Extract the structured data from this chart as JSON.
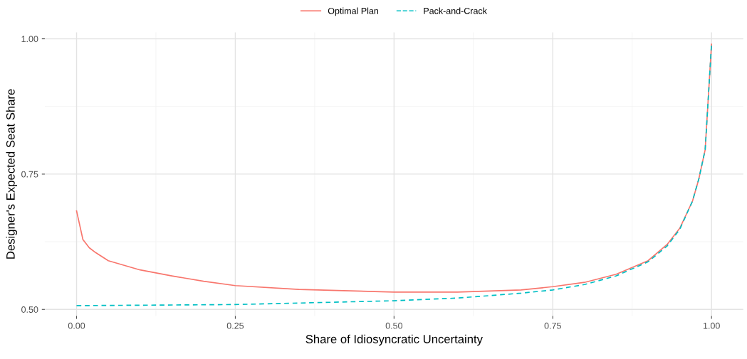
{
  "chart_data": {
    "type": "line",
    "xlabel": "Share of Idiosyncratic Uncertainty",
    "ylabel": "Designer's Expected Seat Share",
    "xlim": [
      -0.05,
      1.05
    ],
    "ylim": [
      0.488,
      1.012
    ],
    "xticks": [
      {
        "value": 0,
        "label": "0.00"
      },
      {
        "value": 0.25,
        "label": "0.25"
      },
      {
        "value": 0.5,
        "label": "0.50"
      },
      {
        "value": 0.75,
        "label": "0.75"
      },
      {
        "value": 1,
        "label": "1.00"
      }
    ],
    "yticks": [
      {
        "value": 0.5,
        "label": "0.50"
      },
      {
        "value": 0.75,
        "label": "0.75"
      },
      {
        "value": 1,
        "label": "1.00"
      }
    ],
    "grid": true,
    "legend": "top",
    "series": [
      {
        "name": "Optimal Plan",
        "color": "#f8766d",
        "line_style": "solid",
        "x": [
          0,
          0.01,
          0.02,
          0.03,
          0.05,
          0.1,
          0.15,
          0.2,
          0.25,
          0.35,
          0.5,
          0.6,
          0.7,
          0.75,
          0.8,
          0.85,
          0.9,
          0.93,
          0.95,
          0.97,
          0.98,
          0.99,
          1.0
        ],
        "values": [
          0.682,
          0.629,
          0.614,
          0.605,
          0.59,
          0.573,
          0.562,
          0.552,
          0.544,
          0.537,
          0.532,
          0.532,
          0.536,
          0.542,
          0.55,
          0.565,
          0.59,
          0.62,
          0.65,
          0.7,
          0.741,
          0.795,
          0.99
        ]
      },
      {
        "name": "Pack-and-Crack",
        "color": "#00bfc4",
        "line_style": "dashed",
        "x": [
          0,
          0.25,
          0.5,
          0.6,
          0.7,
          0.75,
          0.8,
          0.85,
          0.9,
          0.93,
          0.95,
          0.97,
          0.98,
          0.99,
          1.0
        ],
        "values": [
          0.507,
          0.509,
          0.516,
          0.521,
          0.53,
          0.536,
          0.546,
          0.562,
          0.588,
          0.617,
          0.648,
          0.7,
          0.741,
          0.795,
          0.99
        ]
      }
    ]
  }
}
